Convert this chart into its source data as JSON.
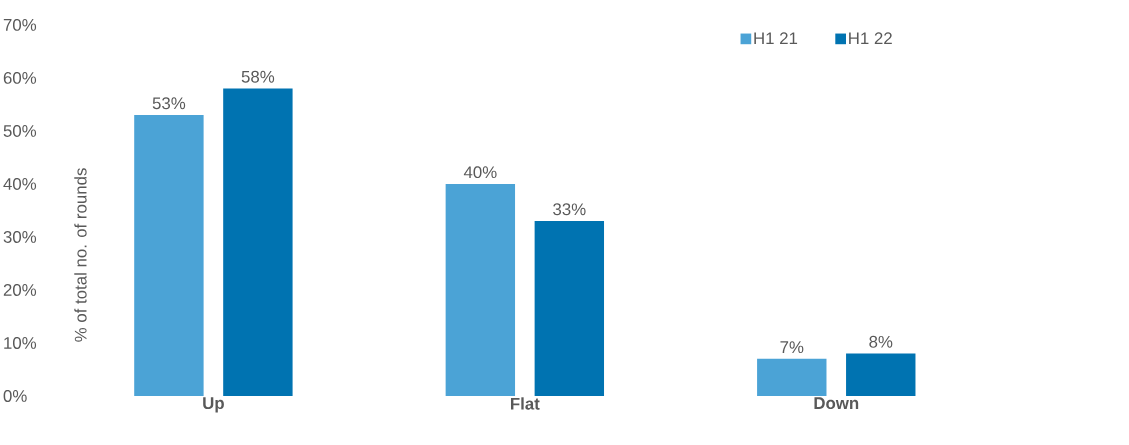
{
  "chart_data": {
    "type": "bar",
    "ylabel": "% of total no. of rounds",
    "categories": [
      "Up",
      "Flat",
      "Down"
    ],
    "series": [
      {
        "name": "H1 21",
        "color": "#4ba3d6",
        "values": [
          53,
          40,
          7
        ],
        "value_labels": [
          "53%",
          "40%",
          "7%"
        ]
      },
      {
        "name": "H1 22",
        "color": "#0073b1",
        "values": [
          58,
          33,
          8
        ],
        "value_labels": [
          "58%",
          "33%",
          "8%"
        ]
      }
    ],
    "ylim": [
      0,
      70
    ],
    "yticks": [
      {
        "value": 0,
        "label": "0%"
      },
      {
        "value": 10,
        "label": "10%"
      },
      {
        "value": 20,
        "label": "20%"
      },
      {
        "value": 30,
        "label": "30%"
      },
      {
        "value": 40,
        "label": "40%"
      },
      {
        "value": 50,
        "label": "50%"
      },
      {
        "value": 60,
        "label": "60%"
      },
      {
        "value": 70,
        "label": "70%"
      }
    ],
    "legend": "top right",
    "grid": false
  }
}
